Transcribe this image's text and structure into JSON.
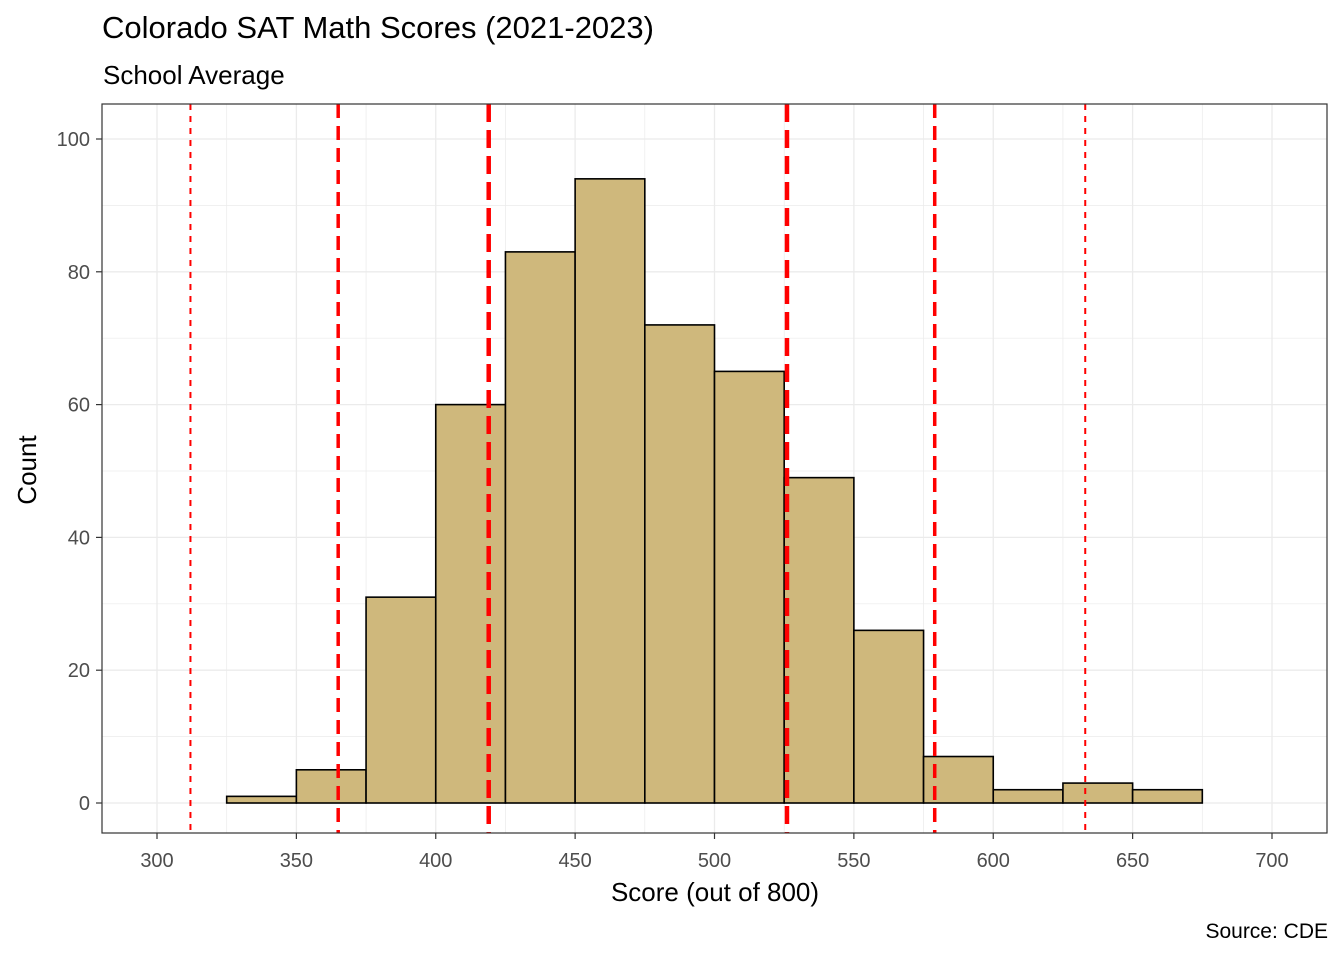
{
  "chart_data": {
    "type": "bar",
    "title": "Colorado SAT Math Scores (2021-2023)",
    "subtitle": "School Average",
    "caption": "Source: CDE",
    "xlabel": "Score (out of 800)",
    "ylabel": "Count",
    "xlim": [
      300,
      700
    ],
    "ylim": [
      0,
      100
    ],
    "x_ticks": [
      300,
      350,
      400,
      450,
      500,
      550,
      600,
      650,
      700
    ],
    "y_ticks": [
      0,
      20,
      40,
      60,
      80,
      100
    ],
    "grid": true,
    "bin_width": 25,
    "bins": [
      {
        "start": 300,
        "end": 325,
        "count": 0
      },
      {
        "start": 325,
        "end": 350,
        "count": 1
      },
      {
        "start": 350,
        "end": 375,
        "count": 5
      },
      {
        "start": 375,
        "end": 400,
        "count": 31
      },
      {
        "start": 400,
        "end": 425,
        "count": 60
      },
      {
        "start": 425,
        "end": 450,
        "count": 83
      },
      {
        "start": 450,
        "end": 475,
        "count": 94
      },
      {
        "start": 475,
        "end": 500,
        "count": 72
      },
      {
        "start": 500,
        "end": 525,
        "count": 65
      },
      {
        "start": 525,
        "end": 550,
        "count": 49
      },
      {
        "start": 550,
        "end": 575,
        "count": 26
      },
      {
        "start": 575,
        "end": 600,
        "count": 7
      },
      {
        "start": 600,
        "end": 625,
        "count": 2
      },
      {
        "start": 625,
        "end": 650,
        "count": 3
      },
      {
        "start": 650,
        "end": 675,
        "count": 2
      },
      {
        "start": 675,
        "end": 700,
        "count": 0
      }
    ],
    "reference_lines": [
      {
        "x": 312,
        "style": "dotted-thin"
      },
      {
        "x": 365,
        "style": "dashed-medium"
      },
      {
        "x": 419,
        "style": "dashed-thick"
      },
      {
        "x": 526,
        "style": "dashed-thick"
      },
      {
        "x": 579,
        "style": "dashed-medium"
      },
      {
        "x": 633,
        "style": "dotted-thin"
      }
    ],
    "colors": {
      "bar_fill": "#CFB87C",
      "bar_stroke": "#000000",
      "reference_line": "#FF0000",
      "grid": "#EBEBEB",
      "panel_border": "#333333"
    }
  }
}
